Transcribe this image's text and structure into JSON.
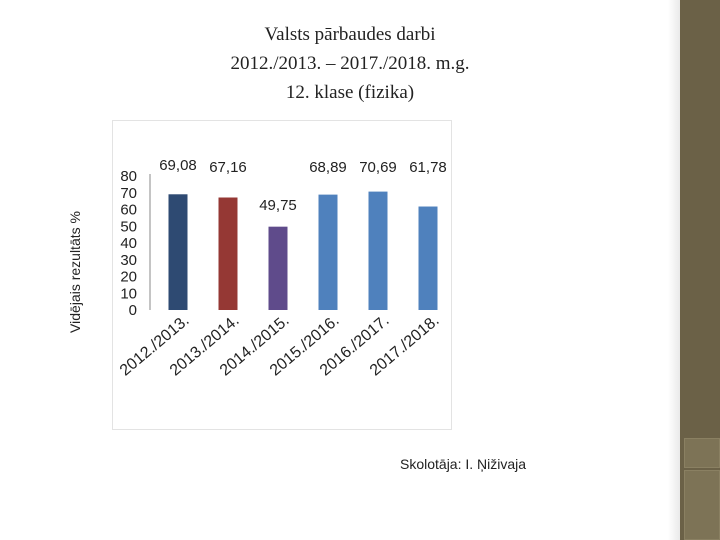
{
  "slide": {
    "title_lines": [
      "Valsts pārbaudes darbi",
      "2012./2013. – 2017./2018. m.g.",
      "12. klase (fizika)"
    ],
    "teacher": "Skolotāja: I. Ņiživaja"
  },
  "colors": {
    "sidebar": "#6b6147",
    "bars": [
      "#2e4a72",
      "#953834",
      "#5f4b8b",
      "#4f81bd",
      "#4f81bd",
      "#4f81bd"
    ]
  },
  "chart_data": {
    "type": "bar",
    "title": "",
    "xlabel": "",
    "ylabel": "Vidējais rezultāts %",
    "categories": [
      "2012./2013.",
      "2013./2014.",
      "2014./2015.",
      "2015./2016.",
      "2016./2017.",
      "2017./2018."
    ],
    "values": [
      69.08,
      67.16,
      49.75,
      68.89,
      70.69,
      61.78
    ],
    "data_labels": [
      "69,08",
      "67,16",
      "49,75",
      "68,89",
      "70,69",
      "61,78"
    ],
    "ylim": [
      0,
      80
    ],
    "yticks": [
      "0",
      "10",
      "20",
      "30",
      "40",
      "50",
      "60",
      "70",
      "80"
    ],
    "grid": false,
    "legend": "none"
  }
}
